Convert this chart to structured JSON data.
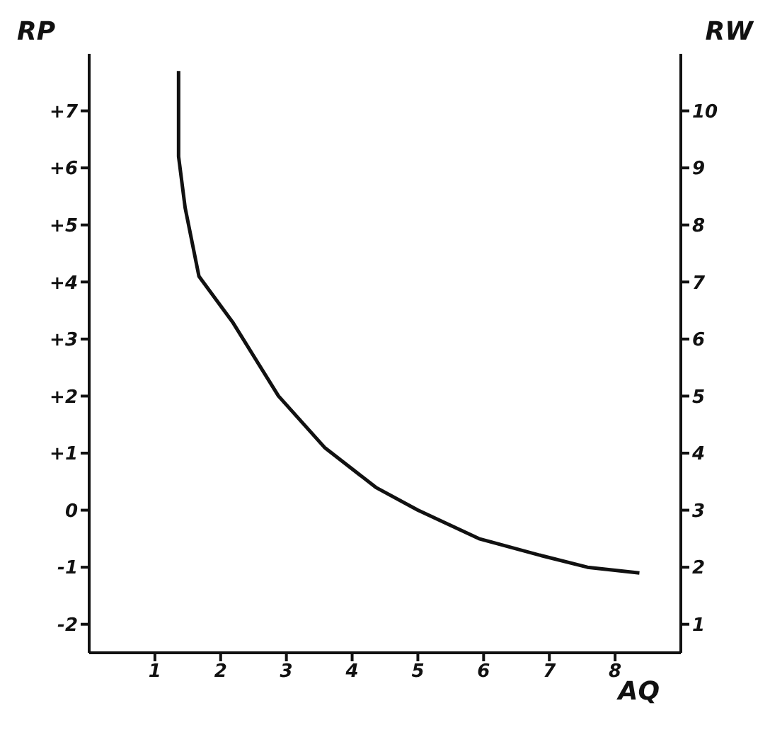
{
  "chart_data": {
    "type": "line",
    "xlabel": "AQ",
    "ylabel": "RP",
    "y2label": "RW",
    "x": [
      1.36,
      1.36,
      1.46,
      1.67,
      2.18,
      2.88,
      3.58,
      4.36,
      5.0,
      5.93,
      6.89,
      7.58,
      8.37
    ],
    "series": [
      {
        "color": "#111111",
        "values": [
          7.7,
          6.2,
          5.3,
          4.1,
          3.3,
          2.0,
          1.1,
          0.4,
          0,
          -0.5,
          -0.8,
          -1.0,
          -1.1
        ]
      }
    ],
    "xlim": [
      0,
      9
    ],
    "xticks": [
      1,
      2,
      3,
      4,
      5,
      6,
      7,
      8
    ],
    "ylim": [
      -2.5,
      8
    ],
    "yticks": [
      -2,
      -1,
      0,
      {
        "value": 1,
        "label": "+1"
      },
      {
        "value": 2,
        "label": "+2"
      },
      {
        "value": 3,
        "label": "+3"
      },
      {
        "value": 4,
        "label": "+4"
      },
      {
        "value": 5,
        "label": "+5"
      },
      {
        "value": 6,
        "label": "+6"
      },
      {
        "value": 7,
        "label": "+7"
      }
    ],
    "y2lim": [
      0.5,
      11
    ],
    "y2ticks": [
      1,
      2,
      3,
      4,
      5,
      6,
      7,
      8,
      9,
      10
    ],
    "grid": false,
    "legend": false,
    "marker": "none",
    "line_style": "solid"
  }
}
